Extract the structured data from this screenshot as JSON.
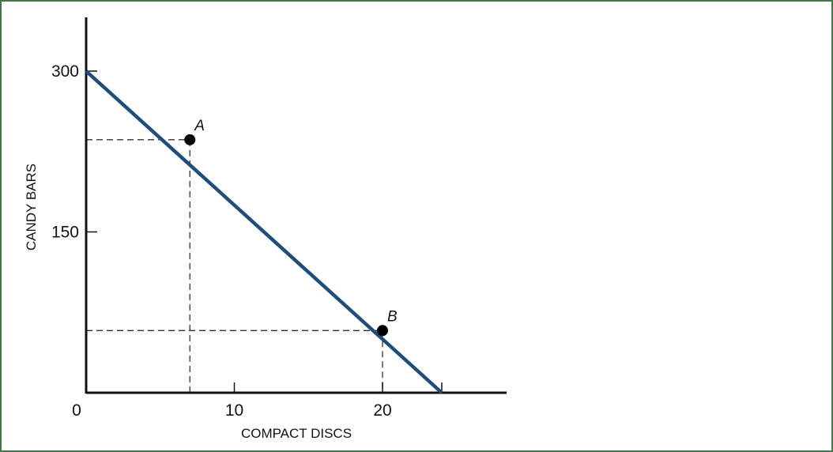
{
  "colors": {
    "frame": "#3e7a4c",
    "line": "#1f4e79",
    "axis": "#111111",
    "guide": "#333333",
    "point": "#000000"
  },
  "chart_data": {
    "type": "line",
    "title": "",
    "xlabel": "COMPACT DISCS",
    "ylabel": "CANDY BARS",
    "xlim": [
      0,
      28
    ],
    "ylim": [
      0,
      350
    ],
    "x_ticks": [
      0,
      10,
      20,
      24
    ],
    "x_tick_labels": [
      "0",
      "10",
      "20",
      ""
    ],
    "y_ticks": [
      150,
      300
    ],
    "y_tick_labels": [
      "150",
      "300"
    ],
    "grid": false,
    "legend": "none",
    "series": [
      {
        "x": [
          0,
          24
        ],
        "y": [
          300,
          0
        ]
      }
    ],
    "points": [
      {
        "label": "A",
        "x": 7,
        "y": 236,
        "guides": true
      },
      {
        "label": "B",
        "x": 20,
        "y": 58,
        "guides": true
      }
    ]
  }
}
